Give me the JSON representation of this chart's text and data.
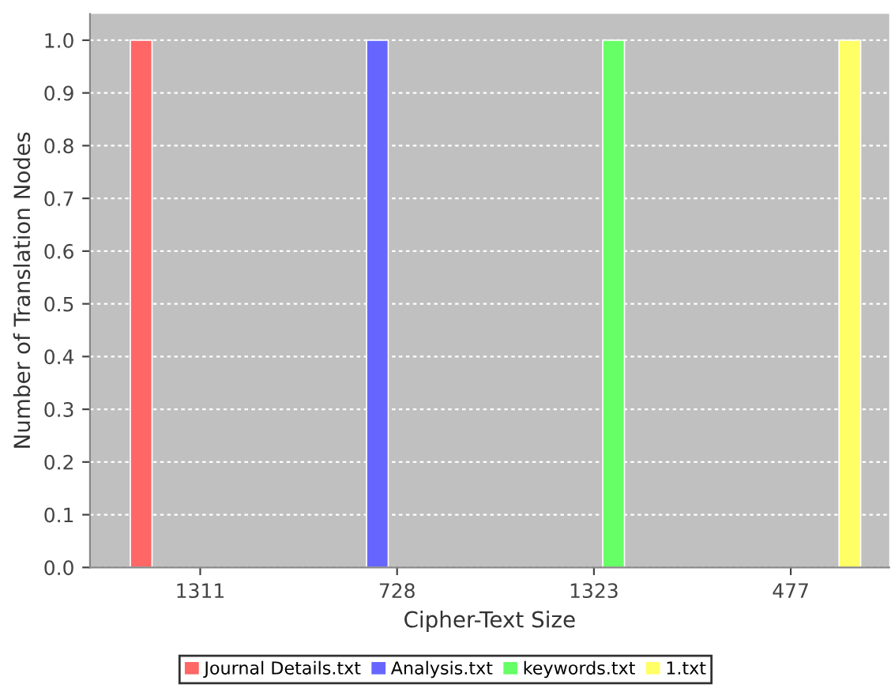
{
  "chart_data": {
    "type": "bar",
    "xlabel": "Cipher-Text Size",
    "ylabel": "Number of Translation Nodes",
    "categories": [
      "1311",
      "728",
      "1323",
      "477"
    ],
    "series": [
      {
        "name": "Journal Details.txt",
        "color": "#ff6666",
        "values": [
          1.0,
          null,
          null,
          null
        ]
      },
      {
        "name": "Analysis.txt",
        "color": "#6666ff",
        "values": [
          null,
          1.0,
          null,
          null
        ]
      },
      {
        "name": "keywords.txt",
        "color": "#66ff66",
        "values": [
          null,
          null,
          1.0,
          null
        ]
      },
      {
        "name": "1.txt",
        "color": "#ffff66",
        "values": [
          null,
          null,
          null,
          1.0
        ]
      }
    ],
    "ylim": [
      0,
      1.05
    ],
    "yticks": [
      {
        "value": 0,
        "label": "0.0"
      },
      0.1,
      0.2,
      0.3,
      0.4,
      0.5,
      0.6,
      0.7,
      0.8,
      0.9,
      {
        "value": 1,
        "label": "1.0"
      }
    ],
    "grid": "y",
    "legend": "bottom"
  }
}
